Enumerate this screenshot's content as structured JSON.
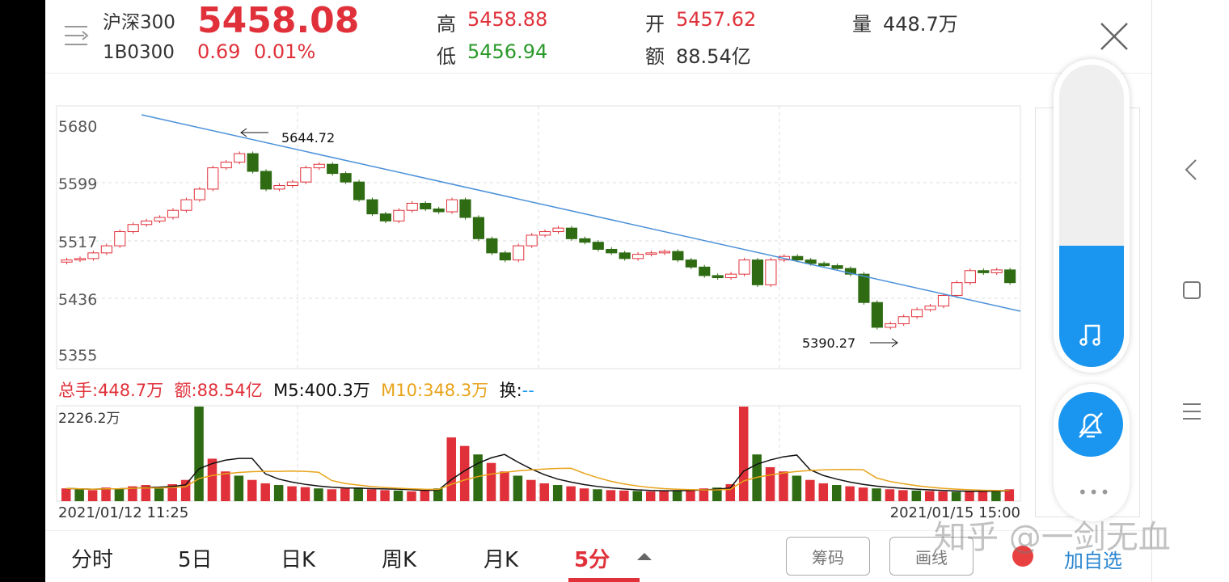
{
  "header": {
    "name": "沪深300",
    "code": "1B0300",
    "price": "5458.08",
    "change": "0.69",
    "change_pct": "0.01%",
    "high_label": "高",
    "high": "5458.88",
    "low_label": "低",
    "low": "5456.94",
    "open_label": "开",
    "open": "5457.62",
    "amount_label": "额",
    "amount": "88.54亿",
    "volume_label": "量",
    "volume": "448.7万"
  },
  "chart": {
    "y_ticks": [
      "5680",
      "5599",
      "5517",
      "5436",
      "5355"
    ],
    "max_annotation": "5644.72",
    "min_annotation": "5390.27",
    "volume_legend": {
      "total": "总手:448.7万",
      "amount": "额:88.54亿",
      "m5": "M5:400.3万",
      "m10": "M10:348.3万",
      "turnover_label": "换:",
      "turnover": "--"
    },
    "volume_max": "2226.2万",
    "start_date": "2021/01/12 11:25",
    "end_date": "2021/01/15 15:00"
  },
  "chart_data": {
    "type": "candlestick",
    "y_range": [
      5355,
      5680
    ],
    "closes": [
      5490,
      5492,
      5500,
      5510,
      5530,
      5540,
      5545,
      5550,
      5560,
      5575,
      5590,
      5620,
      5628,
      5640,
      5615,
      5590,
      5595,
      5600,
      5620,
      5625,
      5612,
      5600,
      5575,
      5555,
      5545,
      5560,
      5570,
      5562,
      5558,
      5575,
      5550,
      5520,
      5500,
      5490,
      5510,
      5525,
      5530,
      5535,
      5520,
      5515,
      5505,
      5500,
      5492,
      5498,
      5500,
      5502,
      5490,
      5480,
      5468,
      5465,
      5470,
      5490,
      5455,
      5490,
      5495,
      5490,
      5485,
      5482,
      5478,
      5470,
      5430,
      5395,
      5400,
      5410,
      5420,
      5425,
      5440,
      5458,
      5475,
      5472,
      5476,
      5458
    ],
    "volumes": [
      300,
      280,
      260,
      320,
      300,
      350,
      380,
      300,
      400,
      500,
      2226,
      1000,
      700,
      600,
      500,
      420,
      380,
      350,
      330,
      300,
      280,
      300,
      320,
      280,
      260,
      250,
      230,
      250,
      300,
      1500,
      1300,
      1100,
      900,
      700,
      600,
      500,
      420,
      380,
      350,
      300,
      280,
      260,
      250,
      240,
      230,
      250,
      260,
      280,
      300,
      320,
      400,
      2226,
      1100,
      800,
      700,
      600,
      500,
      420,
      380,
      350,
      320,
      300,
      280,
      260,
      250,
      240,
      230,
      220,
      230,
      240,
      260,
      280
    ]
  },
  "tabs": [
    "分时",
    "5日",
    "日K",
    "周K",
    "月K",
    "5分"
  ],
  "active_tab": 5,
  "buttons": {
    "chips": "筹码",
    "draw": "画线",
    "add_watch": "加自选"
  },
  "watermark": "知乎 @一剑无血",
  "colors": {
    "up": "#e0313a",
    "down": "#2e6b12",
    "trend": "#4a90d9",
    "accent": "#1a96f0",
    "m10": "#e8a31a"
  },
  "media_slider": {
    "level": 0.4
  }
}
